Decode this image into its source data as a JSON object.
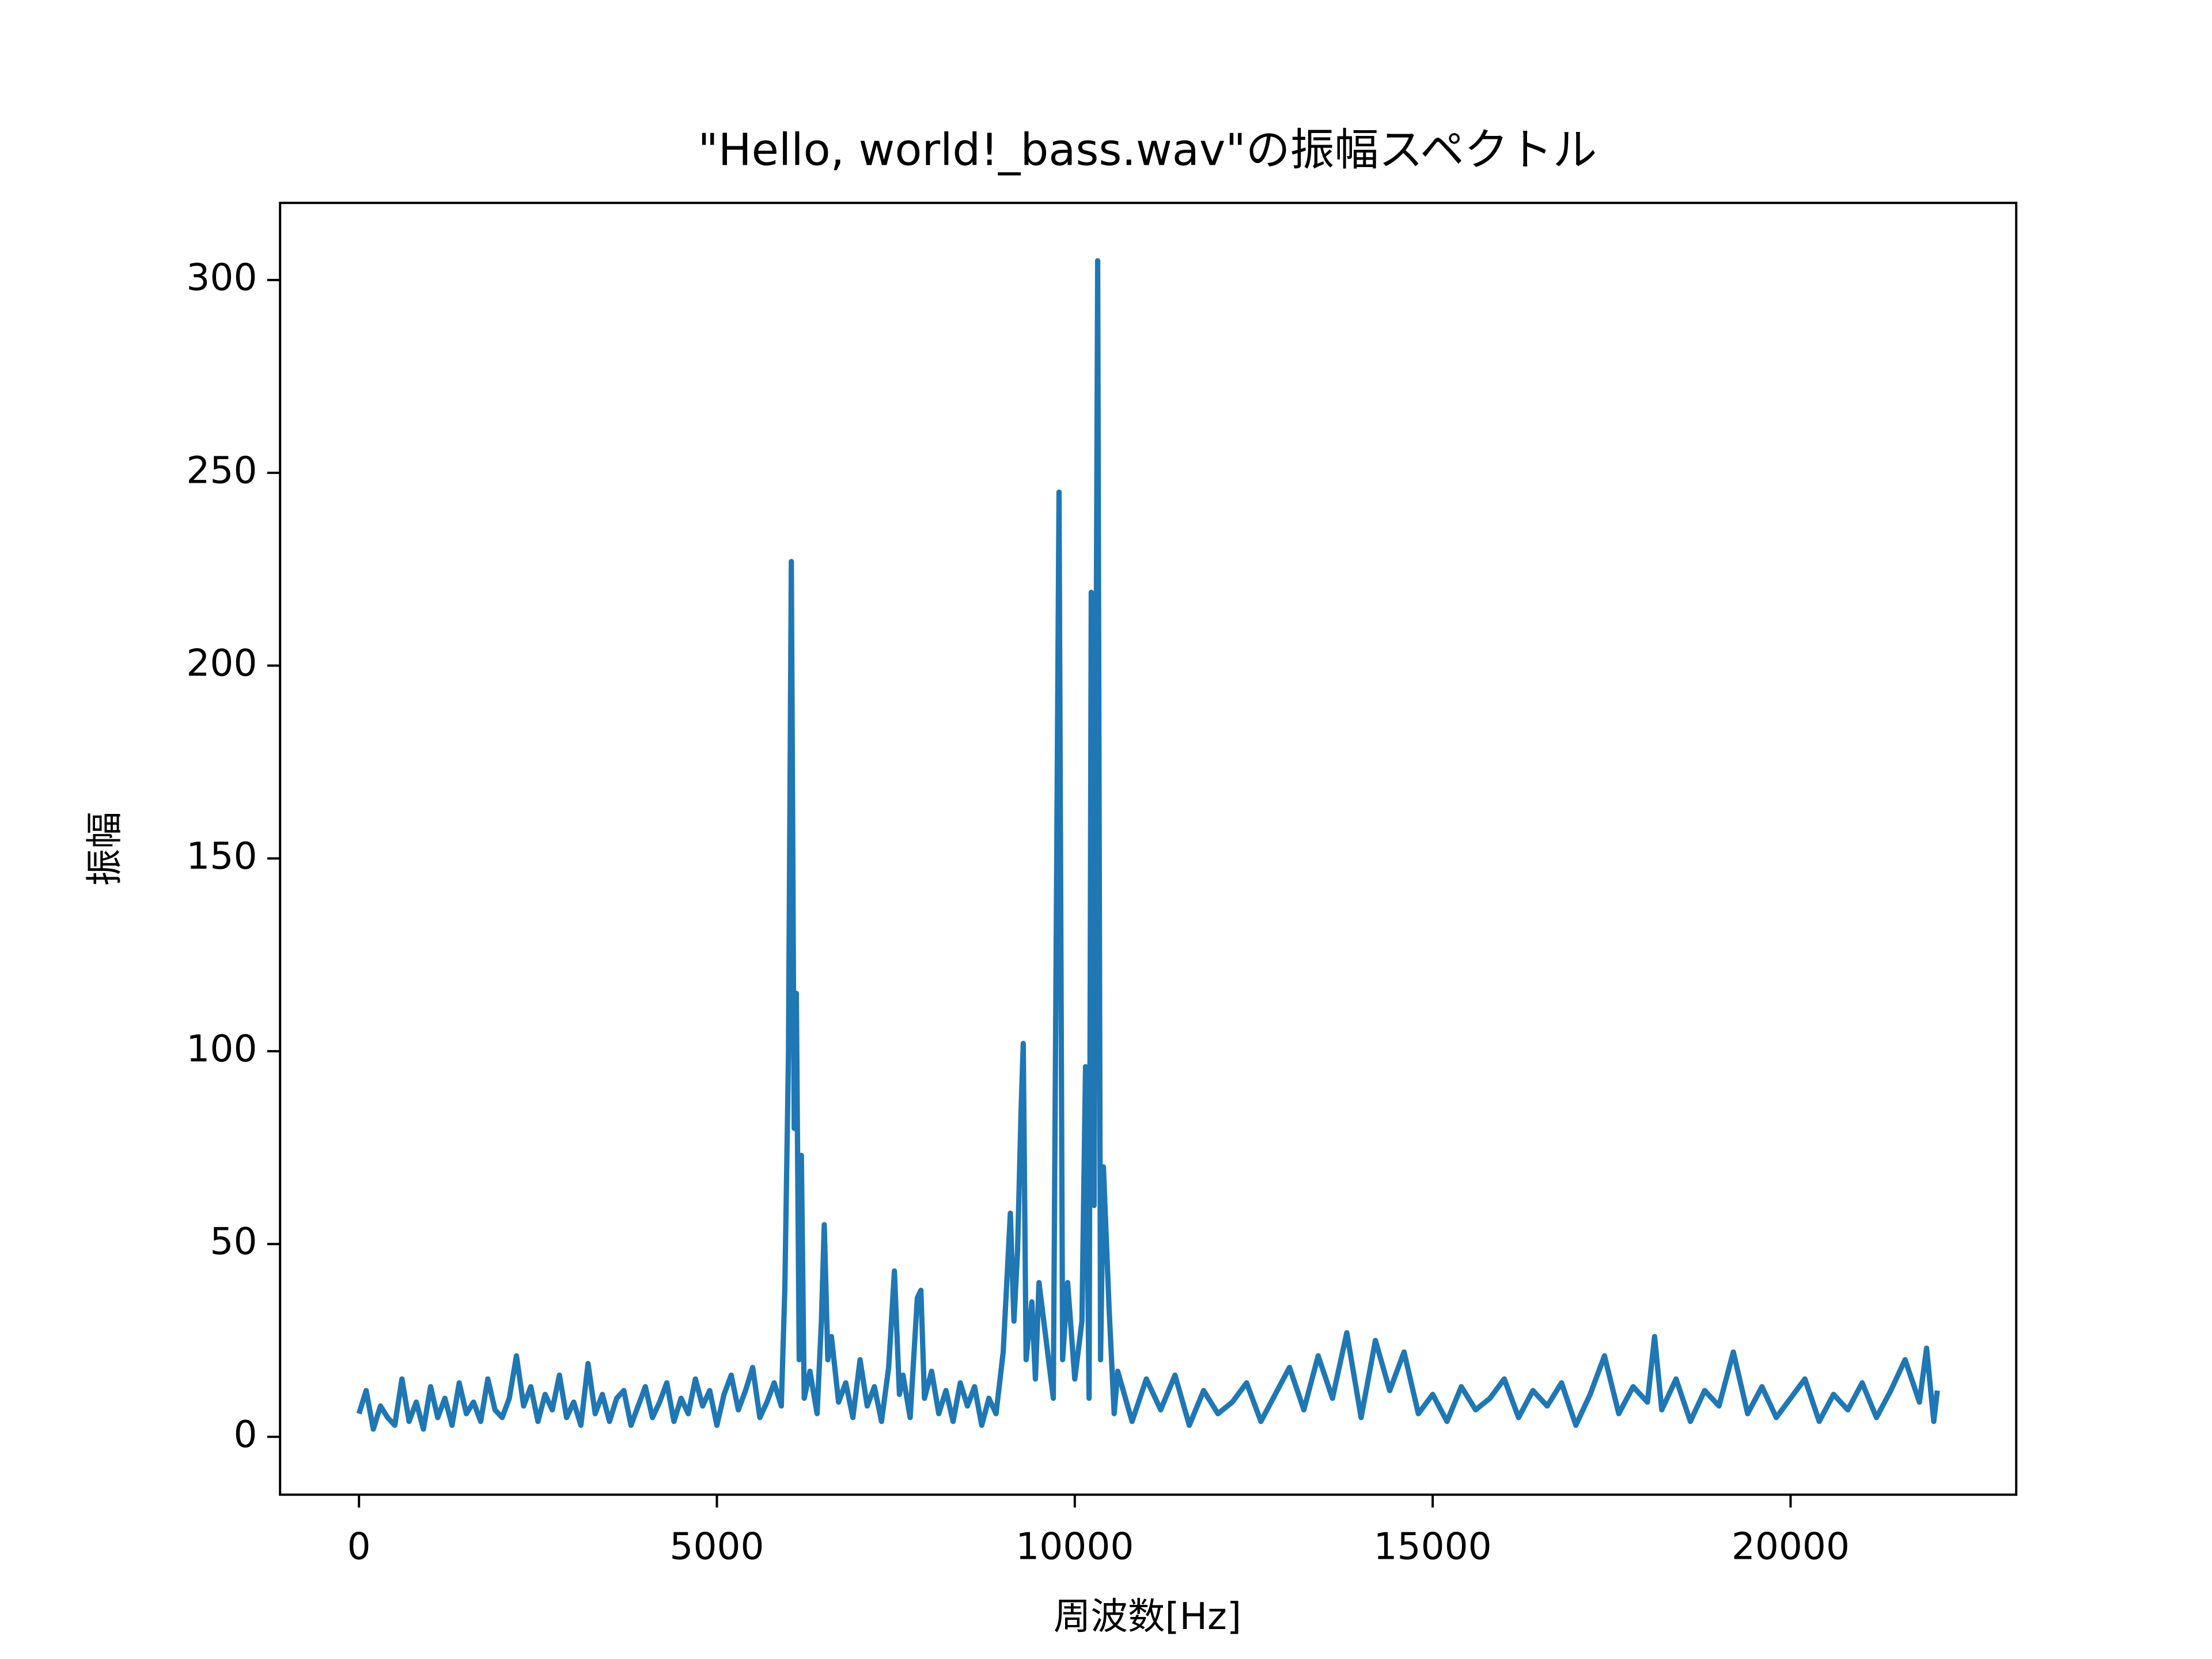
{
  "chart_data": {
    "type": "line",
    "title": "\"Hello, world!_bass.wav\"の振幅スペクトル",
    "x_label": "周波数[Hz]",
    "y_label": "振幅",
    "color": "#1f77b4",
    "xlim": [
      -1102.5,
      23152.5
    ],
    "ylim": [
      -15,
      320
    ],
    "xticks": [
      0,
      5000,
      10000,
      15000,
      20000
    ],
    "yticks": [
      0,
      50,
      100,
      150,
      200,
      250,
      300
    ],
    "grid": false,
    "x": [
      0,
      100,
      200,
      300,
      400,
      500,
      600,
      700,
      800,
      900,
      1000,
      1100,
      1200,
      1300,
      1400,
      1500,
      1600,
      1700,
      1800,
      1900,
      2000,
      2100,
      2200,
      2300,
      2400,
      2500,
      2600,
      2700,
      2800,
      2900,
      3000,
      3100,
      3200,
      3300,
      3400,
      3500,
      3600,
      3700,
      3800,
      3900,
      4000,
      4100,
      4200,
      4300,
      4400,
      4500,
      4600,
      4700,
      4800,
      4900,
      5000,
      5100,
      5200,
      5300,
      5400,
      5500,
      5600,
      5700,
      5800,
      5900,
      5950,
      6000,
      6040,
      6080,
      6110,
      6150,
      6180,
      6220,
      6300,
      6400,
      6460,
      6500,
      6550,
      6600,
      6700,
      6800,
      6900,
      7000,
      7100,
      7200,
      7300,
      7400,
      7480,
      7550,
      7600,
      7700,
      7800,
      7850,
      7900,
      8000,
      8100,
      8200,
      8300,
      8400,
      8500,
      8600,
      8700,
      8800,
      8900,
      9000,
      9100,
      9150,
      9200,
      9250,
      9280,
      9320,
      9400,
      9450,
      9500,
      9600,
      9700,
      9780,
      9830,
      9900,
      10000,
      10100,
      10150,
      10200,
      10230,
      10270,
      10320,
      10360,
      10400,
      10480,
      10550,
      10600,
      10800,
      11000,
      11200,
      11400,
      11600,
      11800,
      12000,
      12200,
      12400,
      12600,
      12800,
      13000,
      13200,
      13400,
      13600,
      13800,
      14000,
      14200,
      14400,
      14600,
      14800,
      15000,
      15200,
      15400,
      15600,
      15800,
      16000,
      16200,
      16400,
      16600,
      16800,
      17000,
      17200,
      17400,
      17600,
      17800,
      18000,
      18100,
      18200,
      18400,
      18600,
      18800,
      19000,
      19200,
      19400,
      19600,
      19800,
      20000,
      20200,
      20400,
      20600,
      20800,
      21000,
      21200,
      21400,
      21600,
      21800,
      21900,
      22000,
      22050
    ],
    "values": [
      6,
      12,
      2,
      8,
      5,
      3,
      15,
      4,
      9,
      2,
      13,
      5,
      10,
      3,
      14,
      6,
      9,
      4,
      15,
      7,
      5,
      10,
      21,
      8,
      13,
      4,
      11,
      7,
      16,
      5,
      9,
      3,
      19,
      6,
      11,
      4,
      10,
      12,
      3,
      8,
      13,
      5,
      9,
      14,
      4,
      10,
      6,
      15,
      8,
      12,
      3,
      11,
      16,
      7,
      12,
      18,
      5,
      9,
      14,
      8,
      39,
      99,
      227,
      80,
      115,
      20,
      73,
      10,
      17,
      6,
      30,
      55,
      20,
      26,
      9,
      14,
      5,
      20,
      8,
      13,
      4,
      18,
      43,
      11,
      16,
      5,
      36,
      38,
      10,
      17,
      6,
      12,
      4,
      14,
      8,
      13,
      3,
      10,
      6,
      22,
      58,
      30,
      48,
      85,
      102,
      20,
      35,
      15,
      40,
      25,
      10,
      245,
      20,
      40,
      15,
      30,
      96,
      10,
      219,
      60,
      305,
      20,
      70,
      33,
      6,
      17,
      4,
      15,
      7,
      16,
      3,
      12,
      6,
      9,
      14,
      4,
      11,
      18,
      7,
      21,
      10,
      27,
      5,
      25,
      12,
      22,
      6,
      11,
      4,
      13,
      7,
      10,
      15,
      5,
      12,
      8,
      14,
      3,
      11,
      21,
      6,
      13,
      9,
      26,
      7,
      15,
      4,
      12,
      8,
      22,
      6,
      13,
      5,
      10,
      15,
      4,
      11,
      7,
      14,
      5,
      12,
      20,
      9,
      23,
      4,
      12
    ]
  }
}
